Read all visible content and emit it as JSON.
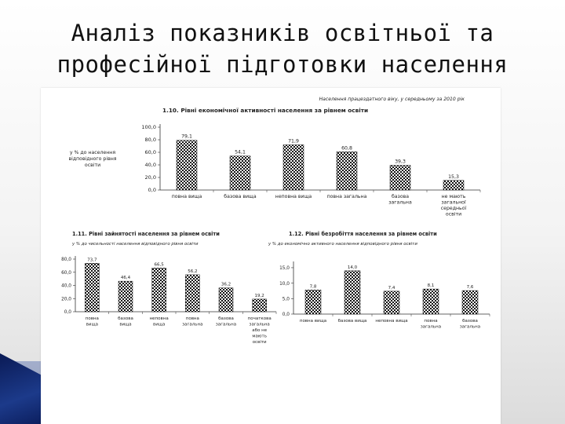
{
  "slide": {
    "title_line1": "Аналіз показників освітньої та",
    "title_line2": "професійної підготовки населення"
  },
  "colors": {
    "bar_pattern": "#111111",
    "bar_bg": "#ffffff",
    "axis": "#333333"
  },
  "chart_data": [
    {
      "id": "chart1",
      "type": "bar",
      "title": "1.10. Рівні економічної активності населення за рівнем освіти",
      "subtitle": "Населення працездатного віку, у середньому за 2010 рік",
      "ylabel": "у % до населення відповідного рівня освіти",
      "categories": [
        "повна вища",
        "базова вища",
        "неповна вища",
        "повна загальна",
        "базова загальна",
        "не мають загальної середньої освіти"
      ],
      "values": [
        79.1,
        54.1,
        71.9,
        60.8,
        39.3,
        15.3
      ],
      "value_labels": [
        "79,1",
        "54,1",
        "71,9",
        "60,8",
        "39,3",
        "15,3"
      ],
      "yticks": [
        "0,0",
        "20,0",
        "40,0",
        "60,0",
        "80,0",
        "100,0"
      ],
      "ylim": [
        0,
        100
      ]
    },
    {
      "id": "chart2",
      "type": "bar",
      "title": "1.11. Рівні зайнятості населення за рівнем освіти",
      "subtitle": "у % до чисельності населення відповідного рівня освіти",
      "categories": [
        "повна вища",
        "базова вища",
        "неповна вища",
        "повна загальна",
        "базова загальна",
        "початкова загальна або не мають освіти"
      ],
      "values": [
        73.7,
        46.4,
        66.5,
        56.2,
        36.2,
        19.2
      ],
      "value_labels": [
        "73,7",
        "46,4",
        "66,5",
        "56,2",
        "36,2",
        "19,2"
      ],
      "yticks": [
        "0,0",
        "20,0",
        "40,0",
        "60,0",
        "80,0"
      ],
      "ylim": [
        0,
        80
      ]
    },
    {
      "id": "chart3",
      "type": "bar",
      "title": "1.12. Рівні безробіття населення за рівнем освіти",
      "subtitle": "у % до економічно активного населення відповідного рівня освіти",
      "categories": [
        "повна вища",
        "базова вища",
        "неповна вища",
        "повна загальна",
        "базова загальна"
      ],
      "values": [
        7.8,
        14.0,
        7.4,
        8.1,
        7.6
      ],
      "value_labels": [
        "7,8",
        "14,0",
        "7,4",
        "8,1",
        "7,6"
      ],
      "yticks": [
        "0,0",
        "5,0",
        "10,0",
        "15,0"
      ],
      "ylim": [
        0,
        16
      ]
    }
  ]
}
